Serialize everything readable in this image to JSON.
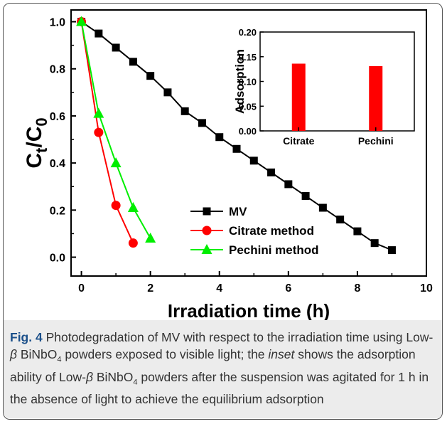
{
  "caption": {
    "label": "Fig. 4",
    "p1": " Photodegradation of MV with respect to the irradiation time using Low-",
    "beta1": "β",
    "p2": " BiNbO",
    "sub1": "4",
    "p3": " powders exposed to visible light; the ",
    "inset_word": "inset",
    "p4": " shows the adsorption ability of Low-",
    "beta2": "β",
    "p5": " BiNbO",
    "sub2": "4",
    "p6": " powders after the suspension was agitated for 1 h in the absence of light to achieve the equilibrium adsorption"
  },
  "chart_data": [
    {
      "type": "line",
      "xlabel": "Irradiation time (h)",
      "ylabel": "Ct/C0",
      "xlim": [
        -0.3,
        10
      ],
      "ylim": [
        -0.08,
        1.05
      ],
      "xticks": [
        0,
        2,
        4,
        6,
        8,
        10
      ],
      "yticks": [
        0.0,
        0.2,
        0.4,
        0.6,
        0.8,
        1.0
      ],
      "legend_position": "bottom-center",
      "series": [
        {
          "name": "MV",
          "color": "#000000",
          "marker": "square",
          "x": [
            0,
            0.5,
            1,
            1.5,
            2,
            2.5,
            3,
            3.5,
            4,
            4.5,
            5,
            5.5,
            6,
            6.5,
            7,
            7.5,
            8,
            8.5,
            9
          ],
          "y": [
            1.0,
            0.95,
            0.89,
            0.83,
            0.77,
            0.7,
            0.62,
            0.57,
            0.51,
            0.46,
            0.41,
            0.36,
            0.31,
            0.26,
            0.21,
            0.16,
            0.11,
            0.06,
            0.03
          ]
        },
        {
          "name": "Citrate method",
          "color": "#ff0000",
          "marker": "circle",
          "x": [
            0,
            0.5,
            1,
            1.5
          ],
          "y": [
            1.0,
            0.53,
            0.22,
            0.06
          ]
        },
        {
          "name": "Pechini method",
          "color": "#00ee00",
          "marker": "triangle",
          "x": [
            0,
            0.5,
            1,
            1.5,
            2
          ],
          "y": [
            1.0,
            0.61,
            0.4,
            0.21,
            0.08
          ]
        }
      ]
    },
    {
      "type": "bar",
      "ylabel": "Adsorption",
      "categories": [
        "Citrate",
        "Pechini"
      ],
      "values": [
        0.136,
        0.131
      ],
      "ylim": [
        0,
        0.2
      ],
      "yticks": [
        0.0,
        0.05,
        0.1,
        0.15,
        0.2
      ],
      "color": "#ff0000"
    }
  ]
}
